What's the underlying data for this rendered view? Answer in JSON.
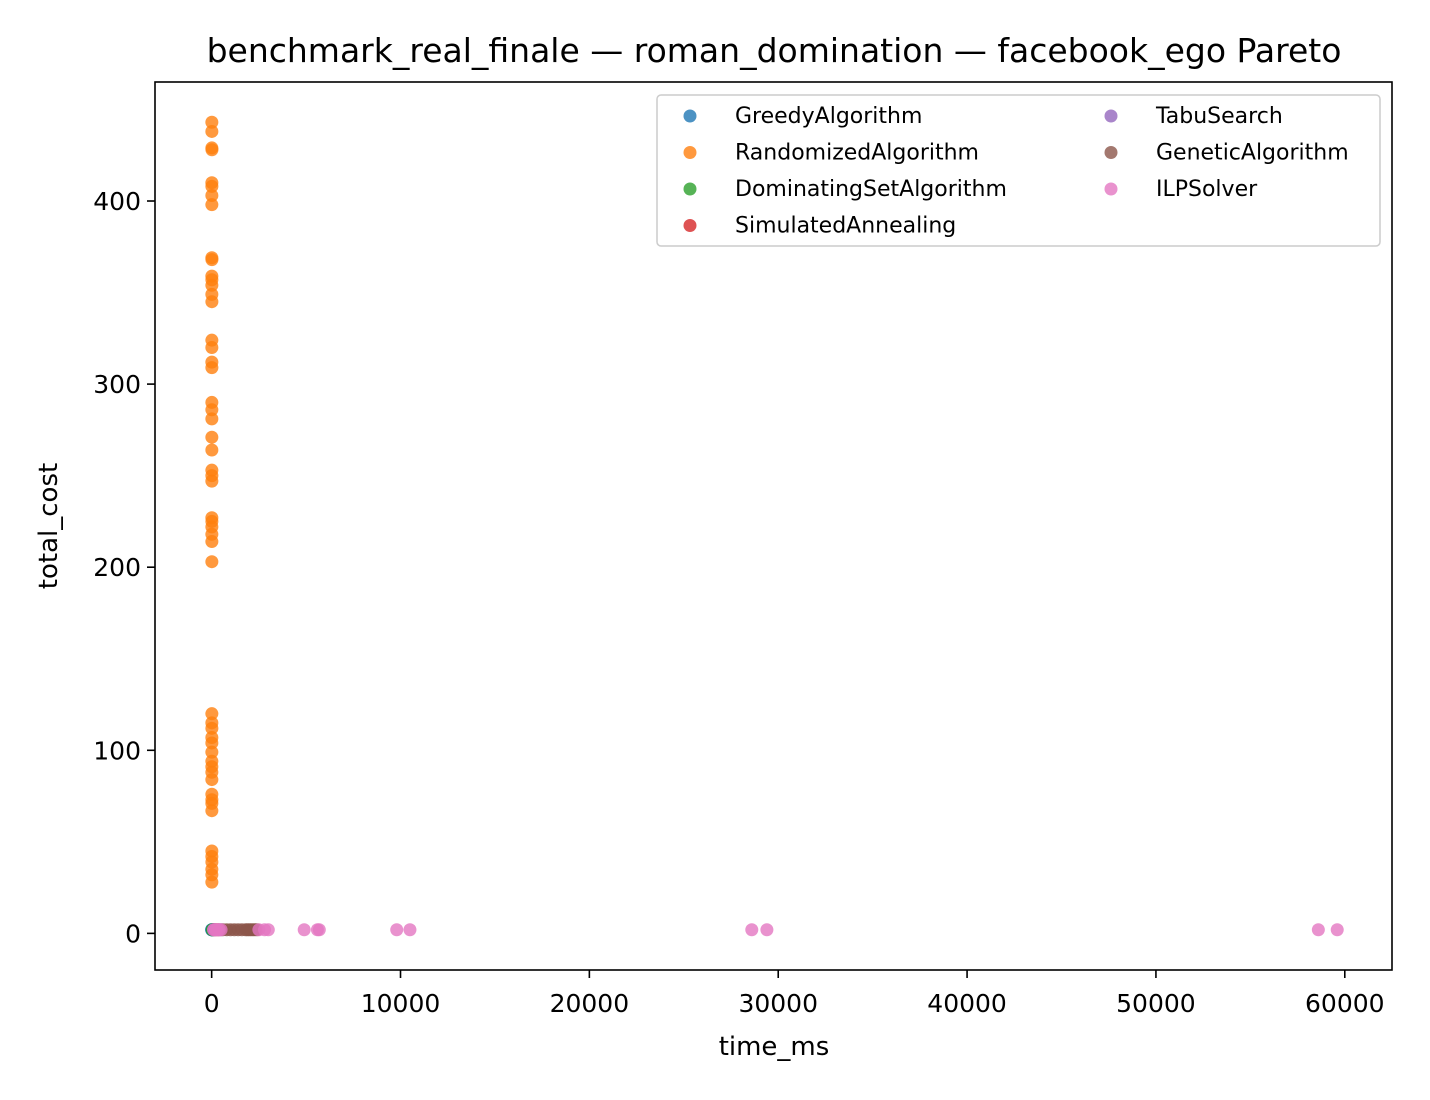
{
  "chart_data": {
    "type": "scatter",
    "title": "benchmark_real_finale — roman_domination — facebook_ego Pareto",
    "xlabel": "time_ms",
    "ylabel": "total_cost",
    "xlim": [
      -3000,
      62500
    ],
    "ylim": [
      -20,
      465
    ],
    "xticks": [
      0,
      10000,
      20000,
      30000,
      40000,
      50000,
      60000
    ],
    "yticks": [
      0,
      100,
      200,
      300,
      400
    ],
    "grid": false,
    "legend": {
      "placement": "top-right",
      "columns": 2
    },
    "series": [
      {
        "name": "GreedyAlgorithm",
        "color": "#1f77b4",
        "points": [
          [
            0,
            2
          ],
          [
            5,
            2
          ],
          [
            10,
            2
          ],
          [
            20,
            2
          ]
        ]
      },
      {
        "name": "RandomizedAlgorithm",
        "color": "#ff7f0e",
        "points": [
          [
            10,
            443
          ],
          [
            10,
            438
          ],
          [
            10,
            429
          ],
          [
            15,
            428
          ],
          [
            10,
            410
          ],
          [
            12,
            408
          ],
          [
            10,
            403
          ],
          [
            10,
            398
          ],
          [
            10,
            369
          ],
          [
            14,
            368
          ],
          [
            10,
            359
          ],
          [
            12,
            357
          ],
          [
            10,
            354
          ],
          [
            10,
            349
          ],
          [
            12,
            345
          ],
          [
            10,
            324
          ],
          [
            10,
            320
          ],
          [
            10,
            312
          ],
          [
            12,
            309
          ],
          [
            10,
            290
          ],
          [
            10,
            286
          ],
          [
            10,
            281
          ],
          [
            10,
            271
          ],
          [
            10,
            264
          ],
          [
            10,
            253
          ],
          [
            12,
            250
          ],
          [
            10,
            247
          ],
          [
            10,
            227
          ],
          [
            12,
            225
          ],
          [
            10,
            222
          ],
          [
            10,
            218
          ],
          [
            10,
            214
          ],
          [
            10,
            203
          ],
          [
            10,
            120
          ],
          [
            10,
            115
          ],
          [
            12,
            112
          ],
          [
            10,
            107
          ],
          [
            10,
            104
          ],
          [
            10,
            99
          ],
          [
            10,
            94
          ],
          [
            10,
            91
          ],
          [
            10,
            88
          ],
          [
            10,
            84
          ],
          [
            10,
            76
          ],
          [
            12,
            73
          ],
          [
            10,
            71
          ],
          [
            10,
            67
          ],
          [
            10,
            45
          ],
          [
            10,
            42
          ],
          [
            12,
            39
          ],
          [
            10,
            35
          ],
          [
            10,
            32
          ],
          [
            10,
            28
          ]
        ]
      },
      {
        "name": "DominatingSetAlgorithm",
        "color": "#2ca02c",
        "points": [
          [
            30,
            2
          ],
          [
            60,
            2
          ],
          [
            90,
            2
          ]
        ]
      },
      {
        "name": "SimulatedAnnealing",
        "color": "#d62728",
        "points": [
          [
            150,
            2
          ],
          [
            250,
            2
          ],
          [
            350,
            2
          ]
        ]
      },
      {
        "name": "TabuSearch",
        "color": "#9467bd",
        "points": [
          [
            100,
            2
          ],
          [
            200,
            2
          ],
          [
            400,
            2
          ],
          [
            500,
            2
          ]
        ]
      },
      {
        "name": "GeneticAlgorithm",
        "color": "#8c564b",
        "points": [
          [
            600,
            2
          ],
          [
            800,
            2
          ],
          [
            1000,
            2
          ],
          [
            1200,
            2
          ],
          [
            1400,
            2
          ],
          [
            1600,
            2
          ],
          [
            1800,
            2
          ],
          [
            1900,
            2
          ],
          [
            2000,
            2
          ],
          [
            2100,
            2
          ],
          [
            2200,
            2
          ],
          [
            2300,
            2
          ],
          [
            2400,
            2
          ]
        ]
      },
      {
        "name": "ILPSolver",
        "color": "#e377c2",
        "points": [
          [
            100,
            2
          ],
          [
            200,
            2
          ],
          [
            300,
            2
          ],
          [
            400,
            2
          ],
          [
            500,
            2
          ],
          [
            2500,
            2
          ],
          [
            2800,
            2
          ],
          [
            3000,
            2
          ],
          [
            4900,
            2
          ],
          [
            5600,
            2
          ],
          [
            5700,
            2
          ],
          [
            9800,
            2
          ],
          [
            10500,
            2
          ],
          [
            28600,
            2
          ],
          [
            29400,
            2
          ],
          [
            58600,
            2
          ],
          [
            59600,
            2
          ]
        ]
      }
    ]
  }
}
